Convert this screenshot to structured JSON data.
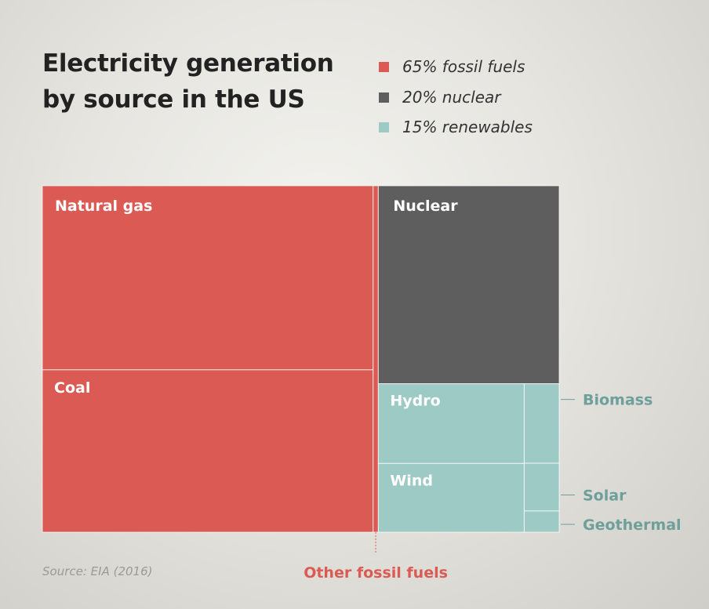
{
  "title_lines": [
    "Electricity generation",
    "by source in the US"
  ],
  "legend": [
    {
      "label": "65% fossil fuels",
      "color": "#db5b54"
    },
    {
      "label": "20% nuclear",
      "color": "#5e5e5e"
    },
    {
      "label": "15% renewables",
      "color": "#9ecac6"
    }
  ],
  "source": "Source: EIA (2016)",
  "chart_data": {
    "type": "treemap",
    "unit": "% of US electricity generation",
    "groups": [
      {
        "group": "fossil fuels",
        "total": 65,
        "color": "#db5b54",
        "items": [
          {
            "name": "Natural gas",
            "value": 34
          },
          {
            "name": "Coal",
            "value": 30
          },
          {
            "name": "Other fossil fuels",
            "value": 1
          }
        ]
      },
      {
        "group": "nuclear",
        "total": 20,
        "color": "#5e5e5e",
        "items": [
          {
            "name": "Nuclear",
            "value": 20
          }
        ]
      },
      {
        "group": "renewables",
        "total": 15,
        "color": "#9ecac6",
        "items": [
          {
            "name": "Hydro",
            "value": 6.5
          },
          {
            "name": "Wind",
            "value": 5.6
          },
          {
            "name": "Biomass",
            "value": 1.5
          },
          {
            "name": "Solar",
            "value": 0.9
          },
          {
            "name": "Geothermal",
            "value": 0.4
          }
        ]
      }
    ]
  }
}
